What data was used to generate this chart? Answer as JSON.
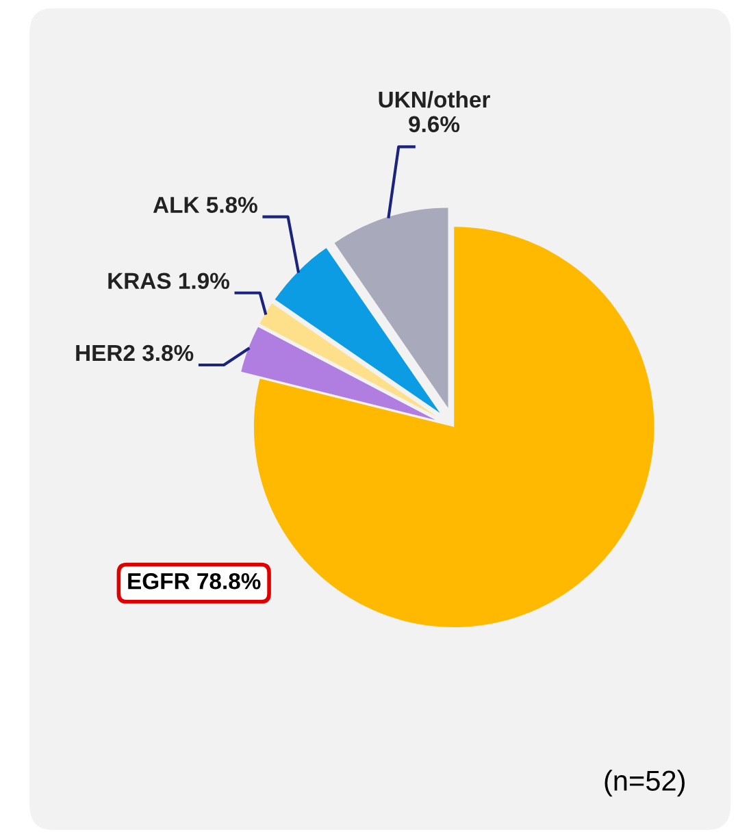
{
  "chart_data": {
    "type": "pie",
    "categories": [
      "EGFR",
      "HER2",
      "KRAS",
      "ALK",
      "UKN/other"
    ],
    "values": [
      78.8,
      3.8,
      1.9,
      5.8,
      9.6
    ],
    "colors": [
      "#ffb900",
      "#b07ee0",
      "#ffe08a",
      "#0c9ce4",
      "#a9a9bc"
    ],
    "value_labels": [
      "78.8%",
      "3.8%",
      "1.9%",
      "5.8%",
      "9.6%"
    ],
    "annotations": [
      "(n=52)"
    ],
    "legend": false
  }
}
